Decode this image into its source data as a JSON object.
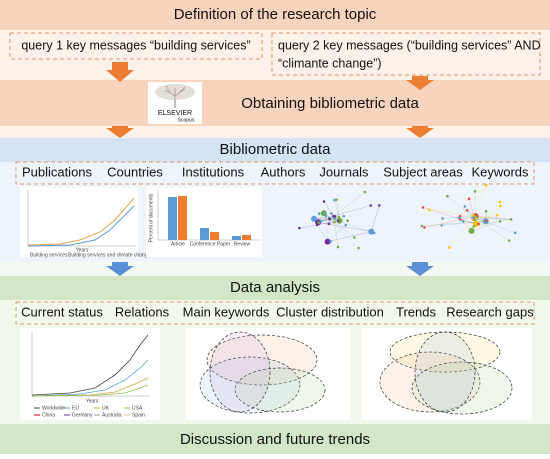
{
  "header": {
    "title": "Definition of the research topic"
  },
  "queries": {
    "query1": "query 1 key messages “building services”",
    "query2": [
      "query 2 key messages (“building services” AND",
      "“climante change”)"
    ]
  },
  "obtaining": {
    "title": "Obtaining bibliometric data",
    "logo": "ELSEVIER",
    "logo_sub": "Scopus"
  },
  "bibliometric": {
    "title": "Bibliometric data",
    "items": [
      "Publications",
      "Countries",
      "Institutions",
      "Authors",
      "Journals",
      "Subject areas",
      "Keywords"
    ],
    "line_legend": [
      "Building services",
      "Building services and climate change"
    ],
    "line_axis": "Years",
    "bar_axis": "Percent of documents",
    "bar_categories": [
      "Article",
      "Conference Paper",
      "Review"
    ]
  },
  "analysis": {
    "title": "Data analysis",
    "items": [
      "Current status",
      "Relations",
      "Main keywords",
      "Cluster distribution",
      "Trends",
      "Research gaps"
    ],
    "legend": [
      "Worldwide",
      "EU",
      "UK",
      "USA",
      "China",
      "Germany",
      "Australia",
      "Spain"
    ],
    "x_axis": "Years"
  },
  "discussion": {
    "title": "Discussion and future trends"
  }
}
